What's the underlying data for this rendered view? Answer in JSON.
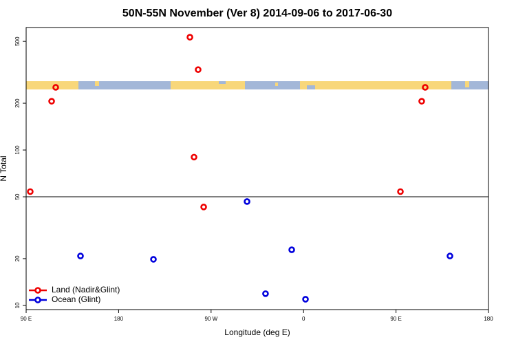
{
  "chart_data": {
    "type": "scatter",
    "title": "50N-55N November (Ver 8)   2014-09-06 to 2017-06-30",
    "x_label": "Longitude (deg E)",
    "y_label": "N Total",
    "xlim": [
      90,
      540
    ],
    "ylim": [
      9.4,
      614
    ],
    "ylog": true,
    "xticks": [
      {
        "value": 90,
        "label": "90 E"
      },
      180,
      {
        "value": 270,
        "label": "90 W"
      },
      {
        "value": 360,
        "label": "0"
      },
      {
        "value": 450,
        "label": "90 E"
      },
      {
        "value": 540,
        "label": "180"
      }
    ],
    "yticks": [
      10,
      20,
      50,
      100,
      200,
      500
    ],
    "legend": "lower left",
    "series": [
      {
        "name": "Land (Nadir&Glint)",
        "color": "#ee0000",
        "x": [
          94.0,
          114.8,
          118.8,
          249.4,
          257.4,
          253.4,
          262.8,
          454.3,
          475.0,
          478.4
        ],
        "values": [
          54,
          206,
          253,
          532,
          329,
          90,
          43,
          54,
          206,
          253
        ]
      },
      {
        "name": "Ocean (Glint)",
        "color": "#0000dd",
        "x": [
          142.9,
          213.9,
          305.0,
          323.0,
          348.5,
          361.9,
          502.5
        ],
        "values": [
          20.8,
          19.8,
          46.6,
          11.9,
          22.8,
          10.96,
          20.8
        ]
      }
    ]
  }
}
